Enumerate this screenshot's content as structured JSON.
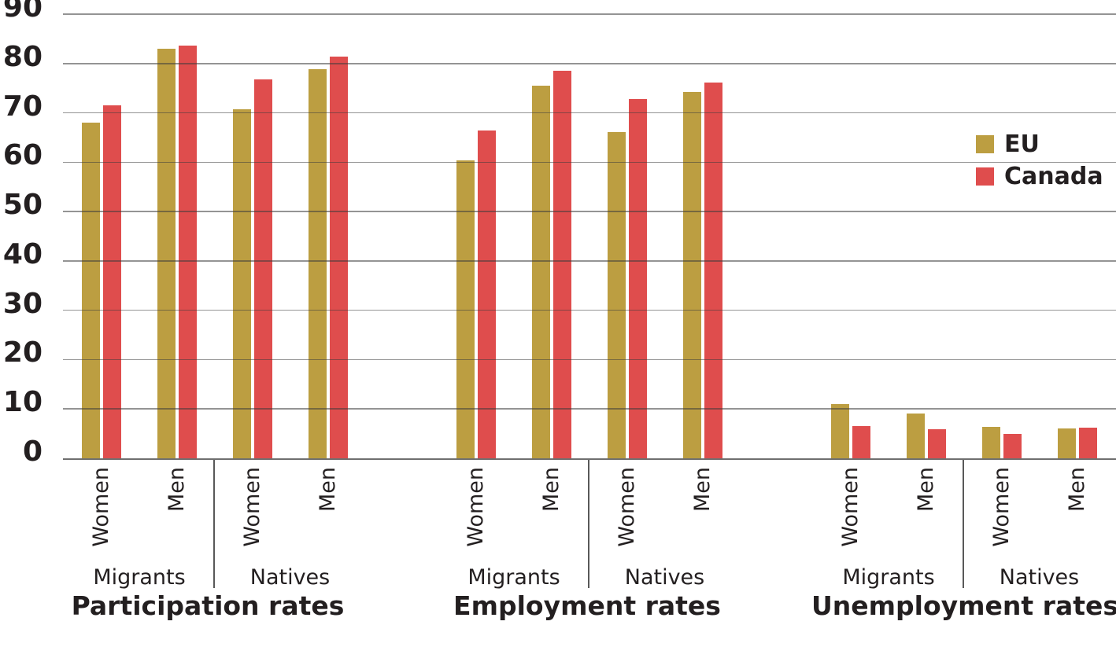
{
  "chart_data": {
    "type": "bar",
    "title": "",
    "xlabel": "",
    "ylabel": "",
    "ylim": [
      0,
      90
    ],
    "yticks": [
      0,
      10,
      20,
      30,
      40,
      50,
      60,
      70,
      80,
      90
    ],
    "grid": true,
    "legend_position": "right",
    "legend": [
      {
        "name": "EU",
        "color": "#BC9E41"
      },
      {
        "name": "Canada",
        "color": "#DF4D4D"
      }
    ],
    "categories": [
      "Women",
      "Men"
    ],
    "groups": [
      {
        "title": "Participation rates",
        "subgroups": [
          {
            "label": "Migrants",
            "series": [
              {
                "name": "EU",
                "values": [
                  68.0,
                  83.0
                ]
              },
              {
                "name": "Canada",
                "values": [
                  71.5,
                  83.7
                ]
              }
            ]
          },
          {
            "label": "Natives",
            "series": [
              {
                "name": "EU",
                "values": [
                  70.8,
                  78.9
                ]
              },
              {
                "name": "Canada",
                "values": [
                  76.7,
                  81.4
                ]
              }
            ]
          }
        ]
      },
      {
        "title": "Employment rates",
        "subgroups": [
          {
            "label": "Migrants",
            "series": [
              {
                "name": "EU",
                "values": [
                  60.4,
                  75.5
                ]
              },
              {
                "name": "Canada",
                "values": [
                  66.5,
                  78.5
                ]
              }
            ]
          },
          {
            "label": "Natives",
            "series": [
              {
                "name": "EU",
                "values": [
                  66.1,
                  74.3
                ]
              },
              {
                "name": "Canada",
                "values": [
                  72.8,
                  76.1
                ]
              }
            ]
          }
        ]
      },
      {
        "title": "Unemployment rates",
        "subgroups": [
          {
            "label": "Migrants",
            "series": [
              {
                "name": "EU",
                "values": [
                  11.0,
                  9.0
                ]
              },
              {
                "name": "Canada",
                "values": [
                  6.6,
                  5.9
                ]
              }
            ]
          },
          {
            "label": "Natives",
            "series": [
              {
                "name": "EU",
                "values": [
                  6.3,
                  6.0
                ]
              },
              {
                "name": "Canada",
                "values": [
                  5.0,
                  6.2
                ]
              }
            ]
          }
        ]
      }
    ]
  }
}
